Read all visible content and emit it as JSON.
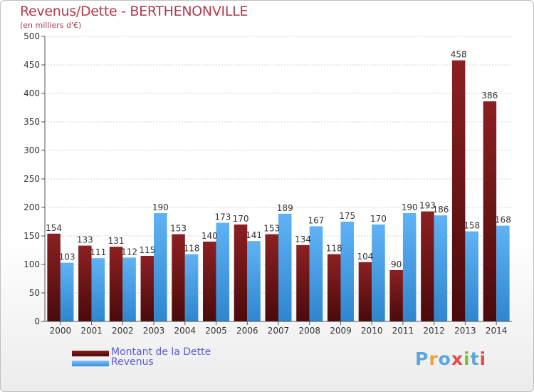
{
  "title": "Revenus/Dette - BERTHENONVILLE",
  "subtitle": "(en milliers d'€)",
  "brand": {
    "text": "Proxiti",
    "letter_colors": [
      "#5aa7e0",
      "#f0a33c",
      "#5aa7e0",
      "#e54b4b",
      "#7bbf3a",
      "#5aa7e0",
      "#e54b4b"
    ]
  },
  "chart_data": {
    "type": "bar",
    "categories": [
      "2000",
      "2001",
      "2002",
      "2003",
      "2004",
      "2005",
      "2006",
      "2007",
      "2008",
      "2009",
      "2010",
      "2011",
      "2012",
      "2013",
      "2014"
    ],
    "series": [
      {
        "name": "Montant de la Dette",
        "color": "#7a1a1c",
        "values": [
          154,
          133,
          131,
          115,
          153,
          140,
          170,
          153,
          134,
          118,
          104,
          90,
          193,
          458,
          386
        ]
      },
      {
        "name": "Revenus",
        "color": "#4aa3ea",
        "values": [
          103,
          111,
          112,
          190,
          118,
          173,
          141,
          189,
          167,
          175,
          170,
          190,
          186,
          158,
          168
        ]
      }
    ],
    "ylim": [
      0,
      500
    ],
    "yticks": [
      0,
      50,
      100,
      150,
      200,
      250,
      300,
      350,
      400,
      450,
      500
    ],
    "grid": true,
    "legend_position": "bottom-left"
  }
}
